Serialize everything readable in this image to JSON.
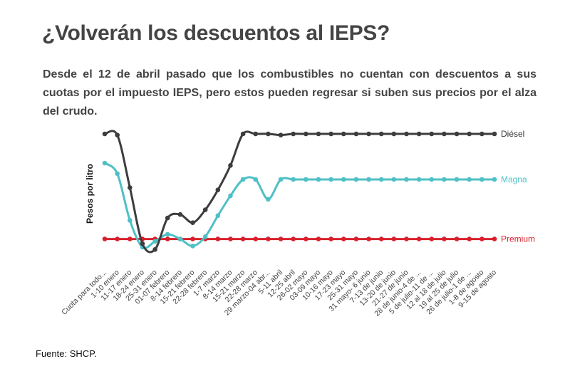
{
  "title": "¿Volverán los descuentos al IEPS?",
  "subtitle": "Desde el 12 de abril pasado que los combustibles no cuentan con descuentos a sus cuotas por el impuesto IEPS, pero estos pueden regresar si suben sus precios por el alza del crudo.",
  "source": "Fuente: SHCP.",
  "chart_data": {
    "type": "line",
    "title": "¿Volverán los descuentos al IEPS?",
    "xlabel": "",
    "ylabel": "Pesos por litro",
    "ylim": [
      0,
      100
    ],
    "grid": false,
    "categories": [
      "Cuota para todo...",
      "1-10 enero",
      "11-17 enero",
      "18-24 enero",
      "25-31 enero",
      "01-07 febrero",
      "8-14 febrero",
      "15-21 febrero",
      "22-28 febrero",
      "1-7 marzo",
      "8-14 marzo",
      "15-21 marzo",
      "22-28 marzo",
      "29 marzo-04 abr...",
      "5-11 abril",
      "12-25 abril",
      "26-02 mayo",
      "03-09 mayo",
      "10-16 mayo",
      "17-23 mayo",
      "25-31 mayo",
      "31 mayo- 6 junio",
      "7-13 de junio",
      "13-20 de junio",
      "21-27 de junio",
      "28 de junio-4 de ...",
      "5 de julio-11 de ...",
      "12 al 18 de julio",
      "19 al 25 de julio",
      "26 de julio-1 de ...",
      "1-8 de agosto",
      "9-15 de agosto"
    ],
    "series": [
      {
        "name": "Diésel",
        "color": "#3d3d3d",
        "values": [
          100,
          99,
          54,
          6,
          1,
          28,
          31,
          24,
          35,
          52,
          73,
          100,
          100,
          100,
          99,
          100,
          100,
          100,
          100,
          100,
          100,
          100,
          100,
          100,
          100,
          100,
          100,
          100,
          100,
          100,
          100,
          100
        ]
      },
      {
        "name": "Magna",
        "color": "#4fc0c6",
        "values": [
          75,
          66,
          26,
          3,
          8,
          14,
          10,
          4,
          12,
          30,
          47,
          61,
          61,
          44,
          61,
          61,
          61,
          61,
          61,
          61,
          61,
          61,
          61,
          61,
          61,
          61,
          61,
          61,
          61,
          61,
          61,
          61
        ]
      },
      {
        "name": "Premium",
        "color": "#d8202b",
        "values": [
          10,
          10,
          10,
          10,
          10,
          10,
          10,
          10,
          10,
          10,
          10,
          10,
          10,
          10,
          10,
          10,
          10,
          10,
          10,
          10,
          10,
          10,
          10,
          10,
          10,
          10,
          10,
          10,
          10,
          10,
          10,
          10
        ]
      }
    ]
  }
}
